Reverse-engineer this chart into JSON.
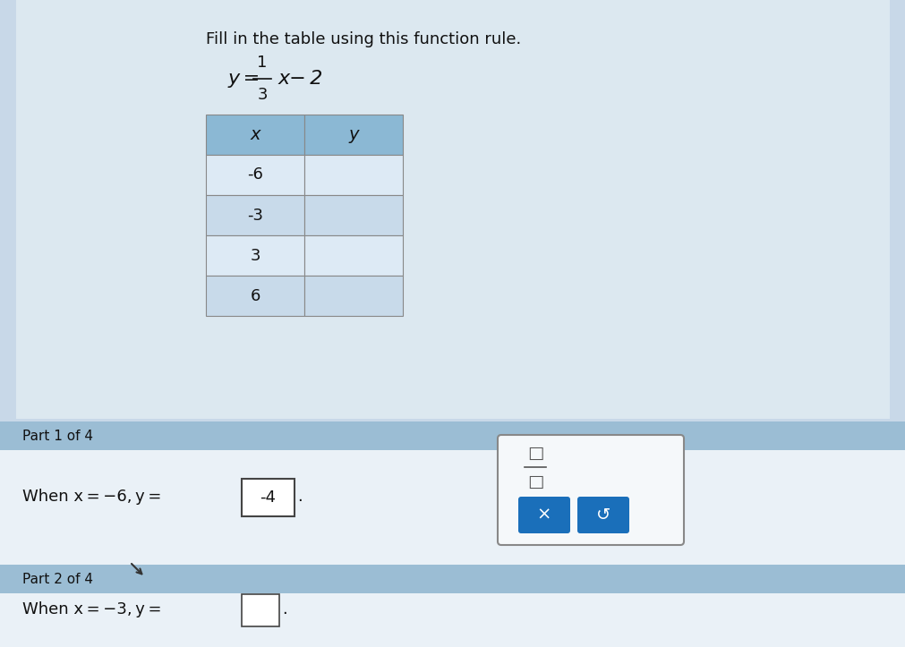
{
  "title": "Fill in the table using this function rule.",
  "equation_top": "y=",
  "equation_fraction_num": "1",
  "equation_fraction_den": "3",
  "equation_rest": "x−2",
  "table_x_values": [
    "-6",
    "-3",
    "3",
    "6"
  ],
  "table_header": [
    "x",
    "y"
  ],
  "bg_color": "#d6e4f0",
  "page_bg": "#c8d8e8",
  "white_bg": "#ffffff",
  "table_header_bg": "#a8c8e0",
  "table_row_bg_light": "#ddeaf5",
  "table_row_bg_medium": "#c8daea",
  "part1_bar_bg": "#b0c8dc",
  "part2_bar_bg": "#b0c8dc",
  "answer_box_color": "#333333",
  "answer_text": "-4",
  "blue_button_color": "#1a6fba",
  "part1_label": "Part 1 of 4",
  "part1_text_prefix": "When x = −6, y =",
  "part2_label": "Part 2 of 4",
  "part2_text": "When x = −3, y =",
  "fraction_symbol": "□",
  "x_symbol": "×",
  "undo_symbol": "↺"
}
